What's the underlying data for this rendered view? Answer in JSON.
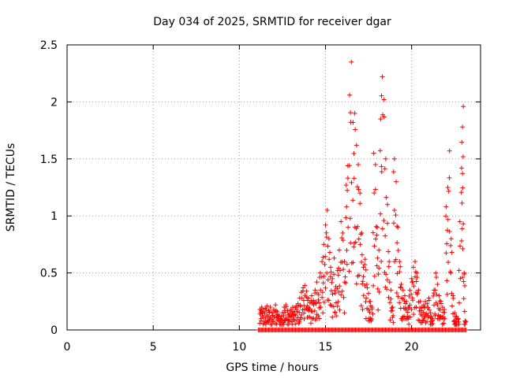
{
  "chart_data": {
    "type": "scatter",
    "title": "Day 034 of 2025, SRMTID for receiver dgar",
    "xlabel": "GPS time / hours",
    "ylabel": "SRMTID / TECUs",
    "xlim": [
      0,
      24
    ],
    "ylim": [
      0,
      2.5
    ],
    "xticks": [
      0,
      5,
      10,
      15,
      20
    ],
    "yticks": [
      0,
      0.5,
      1,
      1.5,
      2,
      2.5
    ],
    "ytick_labels": [
      "0",
      "0.5",
      "1",
      "1.5",
      "2",
      "2.5"
    ],
    "xtick_labels": [
      "0",
      "5",
      "10",
      "15",
      "20"
    ],
    "grid": true,
    "marker": "plus",
    "color": "#ff0000",
    "series": [
      {
        "name": "SRMTID",
        "points": [
          [
            11.2,
            0.18
          ],
          [
            11.3,
            0.2
          ],
          [
            11.4,
            0.16
          ],
          [
            11.5,
            0.19
          ],
          [
            11.6,
            0.21
          ],
          [
            11.7,
            0.17
          ],
          [
            11.8,
            0.2
          ],
          [
            11.9,
            0.15
          ],
          [
            12.0,
            0.18
          ],
          [
            12.1,
            0.22
          ],
          [
            12.2,
            0.16
          ],
          [
            12.3,
            0.13
          ],
          [
            12.4,
            0.1
          ],
          [
            12.5,
            0.15
          ],
          [
            12.6,
            0.2
          ],
          [
            12.7,
            0.22
          ],
          [
            12.8,
            0.17
          ],
          [
            12.9,
            0.14
          ],
          [
            13.0,
            0.18
          ],
          [
            13.1,
            0.2
          ],
          [
            13.2,
            0.16
          ],
          [
            13.3,
            0.21
          ],
          [
            13.4,
            0.23
          ],
          [
            13.5,
            0.28
          ],
          [
            13.6,
            0.33
          ],
          [
            13.7,
            0.37
          ],
          [
            13.8,
            0.39
          ],
          [
            13.9,
            0.34
          ],
          [
            14.0,
            0.28
          ],
          [
            14.1,
            0.24
          ],
          [
            14.2,
            0.3
          ],
          [
            14.3,
            0.26
          ],
          [
            14.4,
            0.35
          ],
          [
            14.5,
            0.42
          ],
          [
            14.6,
            0.31
          ],
          [
            14.7,
            0.5
          ],
          [
            14.8,
            0.6
          ],
          [
            14.9,
            0.75
          ],
          [
            15.0,
            0.92
          ],
          [
            15.1,
            1.05
          ],
          [
            15.2,
            0.8
          ],
          [
            15.3,
            0.55
          ],
          [
            15.4,
            0.45
          ],
          [
            15.5,
            0.63
          ],
          [
            15.6,
            0.38
          ],
          [
            15.7,
            0.52
          ],
          [
            15.8,
            0.7
          ],
          [
            15.9,
            0.95
          ],
          [
            16.0,
            0.85
          ],
          [
            16.1,
            0.6
          ],
          [
            16.2,
            1.27
          ],
          [
            16.3,
            1.44
          ],
          [
            16.4,
            2.06
          ],
          [
            16.5,
            2.35
          ],
          [
            16.6,
            1.82
          ],
          [
            16.7,
            1.9
          ],
          [
            16.8,
            1.62
          ],
          [
            16.9,
            1.45
          ],
          [
            17.0,
            1.2
          ],
          [
            17.1,
            0.85
          ],
          [
            17.2,
            0.55
          ],
          [
            17.3,
            0.62
          ],
          [
            17.4,
            0.4
          ],
          [
            17.5,
            0.32
          ],
          [
            17.6,
            0.25
          ],
          [
            17.7,
            0.2
          ],
          [
            17.8,
            1.55
          ],
          [
            17.9,
            1.45
          ],
          [
            18.0,
            0.9
          ],
          [
            18.1,
            0.7
          ],
          [
            18.2,
            1.85
          ],
          [
            18.3,
            2.22
          ],
          [
            18.4,
            2.02
          ],
          [
            18.5,
            1.5
          ],
          [
            18.6,
            1.1
          ],
          [
            18.7,
            0.6
          ],
          [
            18.8,
            0.35
          ],
          [
            18.9,
            0.2
          ],
          [
            19.0,
            1.5
          ],
          [
            19.1,
            1.3
          ],
          [
            19.2,
            0.9
          ],
          [
            19.3,
            0.6
          ],
          [
            19.4,
            0.4
          ],
          [
            19.5,
            0.35
          ],
          [
            19.6,
            0.3
          ],
          [
            19.7,
            0.25
          ],
          [
            19.8,
            0.2
          ],
          [
            19.9,
            0.35
          ],
          [
            20.0,
            0.45
          ],
          [
            20.1,
            0.55
          ],
          [
            20.2,
            0.6
          ],
          [
            20.3,
            0.5
          ],
          [
            20.4,
            0.35
          ],
          [
            20.5,
            0.25
          ],
          [
            20.6,
            0.2
          ],
          [
            20.7,
            0.22
          ],
          [
            20.8,
            0.25
          ],
          [
            20.9,
            0.23
          ],
          [
            21.0,
            0.28
          ],
          [
            21.1,
            0.15
          ],
          [
            21.2,
            0.1
          ],
          [
            21.3,
            0.35
          ],
          [
            21.4,
            0.5
          ],
          [
            21.5,
            0.4
          ],
          [
            21.6,
            0.3
          ],
          [
            21.7,
            0.25
          ],
          [
            21.8,
            0.2
          ],
          [
            21.9,
            0.18
          ],
          [
            22.0,
            1.08
          ],
          [
            22.1,
            1.25
          ],
          [
            22.2,
            1.57
          ],
          [
            22.3,
            0.8
          ],
          [
            22.4,
            0.3
          ],
          [
            22.5,
            0.15
          ],
          [
            22.6,
            0.12
          ],
          [
            22.7,
            0.1
          ],
          [
            22.8,
            0.95
          ],
          [
            22.9,
            1.42
          ],
          [
            22.95,
            1.78
          ],
          [
            23.0,
            1.96
          ],
          [
            23.05,
            0.5
          ],
          [
            23.1,
            0.08
          ]
        ]
      }
    ],
    "zero_points_x_range": [
      11.1,
      23.2
    ]
  }
}
